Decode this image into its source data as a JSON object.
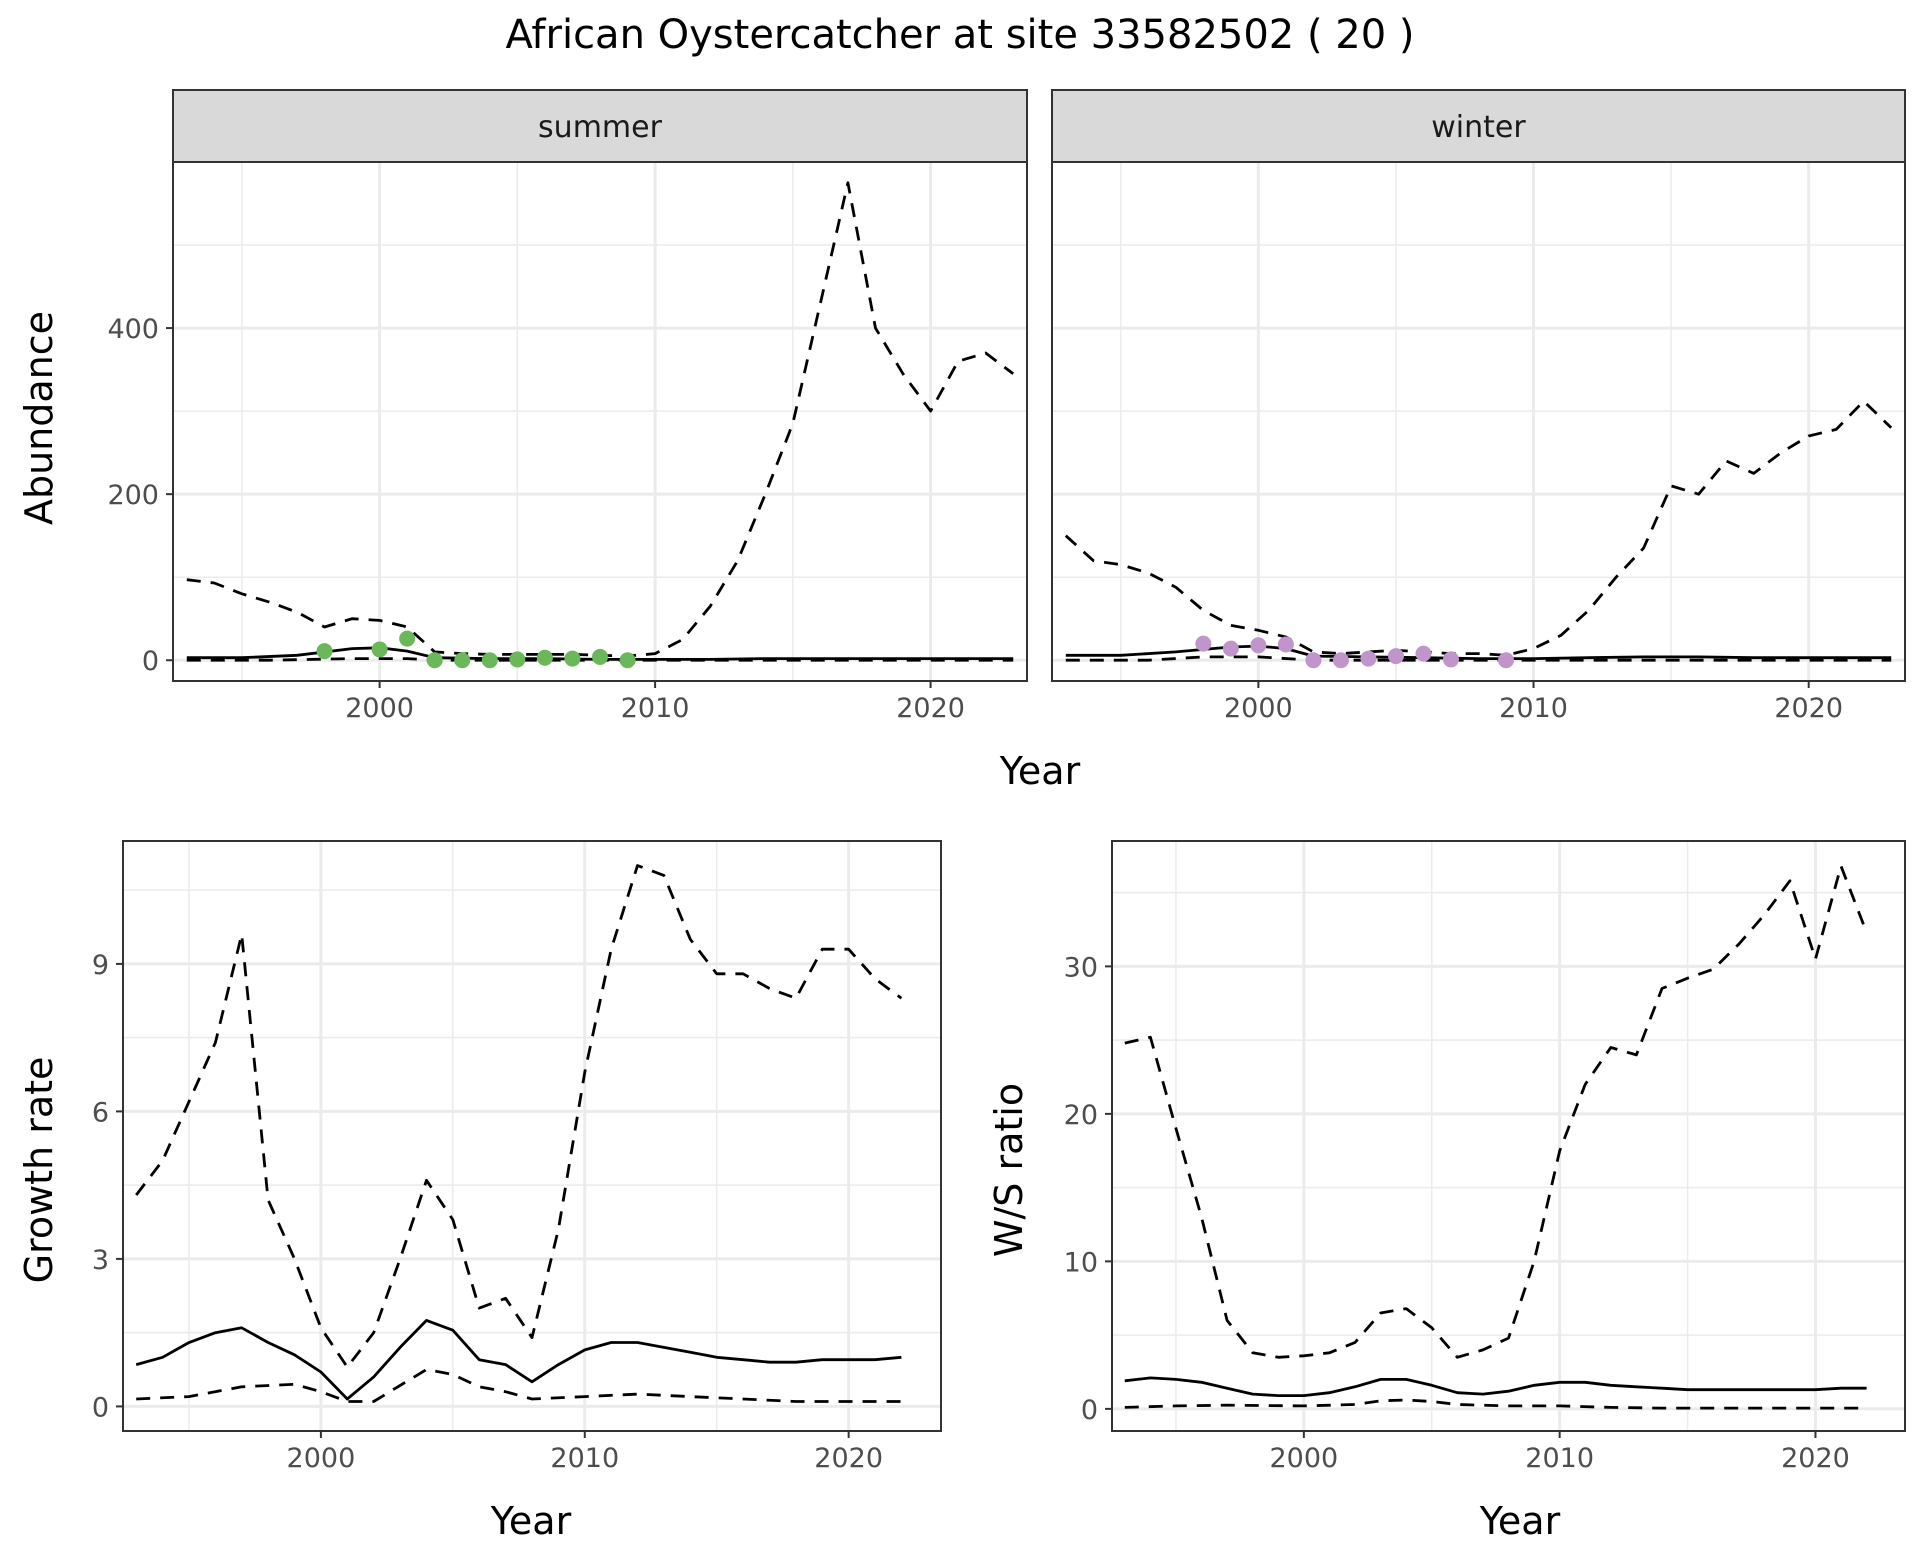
{
  "title": "African Oystercatcher at site 33582502 ( 20 )",
  "colors": {
    "summer_points": "#6ab85a",
    "winter_points": "#bf95cc",
    "line": "#000000",
    "strip_fill": "#d9d9d9",
    "grid": "#ebebeb"
  },
  "chart_data": [
    {
      "type": "line",
      "id": "abundance",
      "facets": [
        "summer",
        "winter"
      ],
      "xlabel": "Year",
      "ylabel": "Abundance",
      "xlim": [
        1992.5,
        2023.5
      ],
      "ylim": [
        -25,
        600
      ],
      "xticks": [
        2000,
        2010,
        2020
      ],
      "yticks": [
        0,
        200,
        400
      ],
      "grid": true,
      "legend": "none",
      "panels": [
        {
          "facet": "summer",
          "series": [
            {
              "style": "solid",
              "x": [
                1993,
                1995,
                1997,
                1999,
                2000,
                2001,
                2002,
                2004,
                2006,
                2008,
                2010,
                2012,
                2014,
                2016,
                2018,
                2020,
                2022,
                2023
              ],
              "y": [
                3,
                3,
                6,
                14,
                15,
                11,
                3,
                2,
                2,
                1,
                1,
                1,
                2,
                2,
                2,
                2,
                2,
                2
              ]
            },
            {
              "style": "dashed-upper",
              "x": [
                1993,
                1994,
                1995,
                1996,
                1997,
                1998,
                1999,
                2000,
                2001,
                2002,
                2003,
                2004,
                2005,
                2006,
                2007,
                2008,
                2009,
                2010,
                2011,
                2012,
                2013,
                2014,
                2015,
                2016,
                2017,
                2018,
                2019,
                2020,
                2021,
                2022,
                2023
              ],
              "y": [
                97,
                93,
                80,
                70,
                58,
                40,
                50,
                48,
                40,
                10,
                8,
                7,
                7,
                7,
                7,
                6,
                5,
                8,
                25,
                65,
                120,
                200,
                285,
                430,
                575,
                400,
                345,
                300,
                360,
                370,
                345
              ]
            },
            {
              "style": "dashed-lower",
              "x": [
                1993,
                1996,
                1999,
                2001,
                2002,
                2005,
                2010,
                2015,
                2020,
                2023
              ],
              "y": [
                0,
                0,
                2,
                2,
                0,
                0,
                0,
                0,
                0,
                0
              ]
            }
          ],
          "points": {
            "x": [
              1998,
              2000,
              2001,
              2002,
              2003,
              2004,
              2005,
              2006,
              2007,
              2008,
              2009
            ],
            "y": [
              11,
              13,
              26,
              0,
              0,
              0,
              1,
              3,
              2,
              4,
              0
            ]
          }
        },
        {
          "facet": "winter",
          "series": [
            {
              "style": "solid",
              "x": [
                1993,
                1995,
                1997,
                1999,
                2000,
                2001,
                2002,
                2004,
                2006,
                2008,
                2010,
                2012,
                2014,
                2016,
                2018,
                2020,
                2022,
                2023
              ],
              "y": [
                6,
                6,
                10,
                16,
                17,
                14,
                5,
                4,
                3,
                2,
                2,
                3,
                4,
                4,
                3,
                3,
                3,
                3
              ]
            },
            {
              "style": "dashed-upper",
              "x": [
                1993,
                1994,
                1995,
                1996,
                1997,
                1998,
                1999,
                2000,
                2001,
                2002,
                2003,
                2004,
                2005,
                2006,
                2007,
                2008,
                2009,
                2010,
                2011,
                2012,
                2013,
                2014,
                2015,
                2016,
                2017,
                2018,
                2019,
                2020,
                2021,
                2022,
                2023
              ],
              "y": [
                150,
                120,
                115,
                105,
                88,
                60,
                42,
                36,
                28,
                10,
                8,
                10,
                12,
                10,
                8,
                8,
                6,
                14,
                30,
                60,
                100,
                135,
                210,
                200,
                240,
                225,
                250,
                270,
                278,
                312,
                280
              ]
            },
            {
              "style": "dashed-lower",
              "x": [
                1993,
                1996,
                1998,
                2000,
                2002,
                2005,
                2010,
                2015,
                2020,
                2023
              ],
              "y": [
                0,
                0,
                4,
                4,
                0,
                0,
                0,
                0,
                0,
                0
              ]
            }
          ],
          "points": {
            "x": [
              1998,
              1999,
              2000,
              2001,
              2002,
              2003,
              2004,
              2005,
              2006,
              2007,
              2009
            ],
            "y": [
              20,
              14,
              18,
              19,
              0,
              0,
              2,
              5,
              8,
              1,
              0
            ]
          }
        }
      ]
    },
    {
      "type": "line",
      "id": "growth",
      "xlabel": "Year",
      "ylabel": "Growth rate",
      "xlim": [
        1992.5,
        2023.5
      ],
      "ylim": [
        -0.5,
        11.5
      ],
      "xticks": [
        2000,
        2010,
        2020
      ],
      "yticks": [
        0,
        3,
        6,
        9
      ],
      "grid": true,
      "legend": "none",
      "series": [
        {
          "style": "solid",
          "x": [
            1993,
            1994,
            1995,
            1996,
            1997,
            1998,
            1999,
            2000,
            2001,
            2002,
            2003,
            2004,
            2005,
            2006,
            2007,
            2008,
            2009,
            2010,
            2011,
            2012,
            2013,
            2014,
            2015,
            2016,
            2017,
            2018,
            2019,
            2020,
            2021,
            2022
          ],
          "y": [
            0.85,
            1.0,
            1.3,
            1.5,
            1.6,
            1.3,
            1.05,
            0.7,
            0.15,
            0.6,
            1.2,
            1.75,
            1.55,
            0.95,
            0.85,
            0.5,
            0.85,
            1.15,
            1.3,
            1.3,
            1.2,
            1.1,
            1.0,
            0.95,
            0.9,
            0.9,
            0.95,
            0.95,
            0.95,
            1.0
          ]
        },
        {
          "style": "dashed-upper",
          "x": [
            1993,
            1994,
            1995,
            1996,
            1997,
            1998,
            1999,
            2000,
            2001,
            2002,
            2003,
            2004,
            2005,
            2006,
            2007,
            2008,
            2009,
            2010,
            2011,
            2012,
            2013,
            2014,
            2015,
            2016,
            2017,
            2018,
            2019,
            2020,
            2021,
            2022
          ],
          "y": [
            4.3,
            5.0,
            6.2,
            7.4,
            9.6,
            4.2,
            3.0,
            1.6,
            0.8,
            1.5,
            3.0,
            4.6,
            3.8,
            2.0,
            2.2,
            1.4,
            3.6,
            6.8,
            9.3,
            11.0,
            10.8,
            9.5,
            8.8,
            8.8,
            8.5,
            8.3,
            9.3,
            9.3,
            8.7,
            8.3
          ]
        },
        {
          "style": "dashed-lower",
          "x": [
            1993,
            1995,
            1997,
            1999,
            2000,
            2001,
            2002,
            2004,
            2005,
            2006,
            2007,
            2008,
            2010,
            2012,
            2014,
            2016,
            2018,
            2020,
            2022
          ],
          "y": [
            0.15,
            0.2,
            0.4,
            0.45,
            0.3,
            0.1,
            0.1,
            0.75,
            0.65,
            0.4,
            0.3,
            0.15,
            0.2,
            0.25,
            0.2,
            0.15,
            0.1,
            0.1,
            0.1
          ]
        }
      ]
    },
    {
      "type": "line",
      "id": "ws_ratio",
      "xlabel": "Year",
      "ylabel": "W/S ratio",
      "xlim": [
        1992.5,
        2023.5
      ],
      "ylim": [
        -1.5,
        38.5
      ],
      "xticks": [
        2000,
        2010,
        2020
      ],
      "yticks": [
        0,
        10,
        20,
        30
      ],
      "grid": true,
      "legend": "none",
      "series": [
        {
          "style": "solid",
          "x": [
            1993,
            1994,
            1995,
            1996,
            1997,
            1998,
            1999,
            2000,
            2001,
            2002,
            2003,
            2004,
            2005,
            2006,
            2007,
            2008,
            2009,
            2010,
            2011,
            2012,
            2013,
            2014,
            2015,
            2016,
            2017,
            2018,
            2019,
            2020,
            2021,
            2022
          ],
          "y": [
            1.9,
            2.1,
            2.0,
            1.8,
            1.4,
            1.0,
            0.9,
            0.9,
            1.1,
            1.5,
            2.0,
            2.0,
            1.6,
            1.1,
            1.0,
            1.2,
            1.6,
            1.8,
            1.8,
            1.6,
            1.5,
            1.4,
            1.3,
            1.3,
            1.3,
            1.3,
            1.3,
            1.3,
            1.4,
            1.4
          ]
        },
        {
          "style": "dashed-upper",
          "x": [
            1993,
            1994,
            1995,
            1996,
            1997,
            1998,
            1999,
            2000,
            2001,
            2002,
            2003,
            2004,
            2005,
            2006,
            2007,
            2008,
            2009,
            2010,
            2011,
            2012,
            2013,
            2014,
            2015,
            2016,
            2017,
            2018,
            2019,
            2020,
            2021,
            2022
          ],
          "y": [
            24.8,
            25.2,
            19.0,
            13.0,
            6.0,
            3.8,
            3.5,
            3.6,
            3.8,
            4.5,
            6.5,
            6.8,
            5.5,
            3.5,
            4.0,
            4.8,
            10.0,
            17.5,
            22.0,
            24.5,
            24.0,
            28.5,
            29.2,
            29.8,
            31.5,
            33.5,
            35.8,
            30.5,
            36.8,
            32.3
          ]
        },
        {
          "style": "dashed-lower",
          "x": [
            1993,
            1995,
            1997,
            2000,
            2002,
            2003,
            2004,
            2005,
            2006,
            2008,
            2010,
            2012,
            2014,
            2016,
            2018,
            2020,
            2022
          ],
          "y": [
            0.1,
            0.2,
            0.25,
            0.2,
            0.3,
            0.55,
            0.6,
            0.5,
            0.3,
            0.2,
            0.2,
            0.1,
            0.05,
            0.05,
            0.05,
            0.05,
            0.05
          ]
        }
      ]
    }
  ]
}
